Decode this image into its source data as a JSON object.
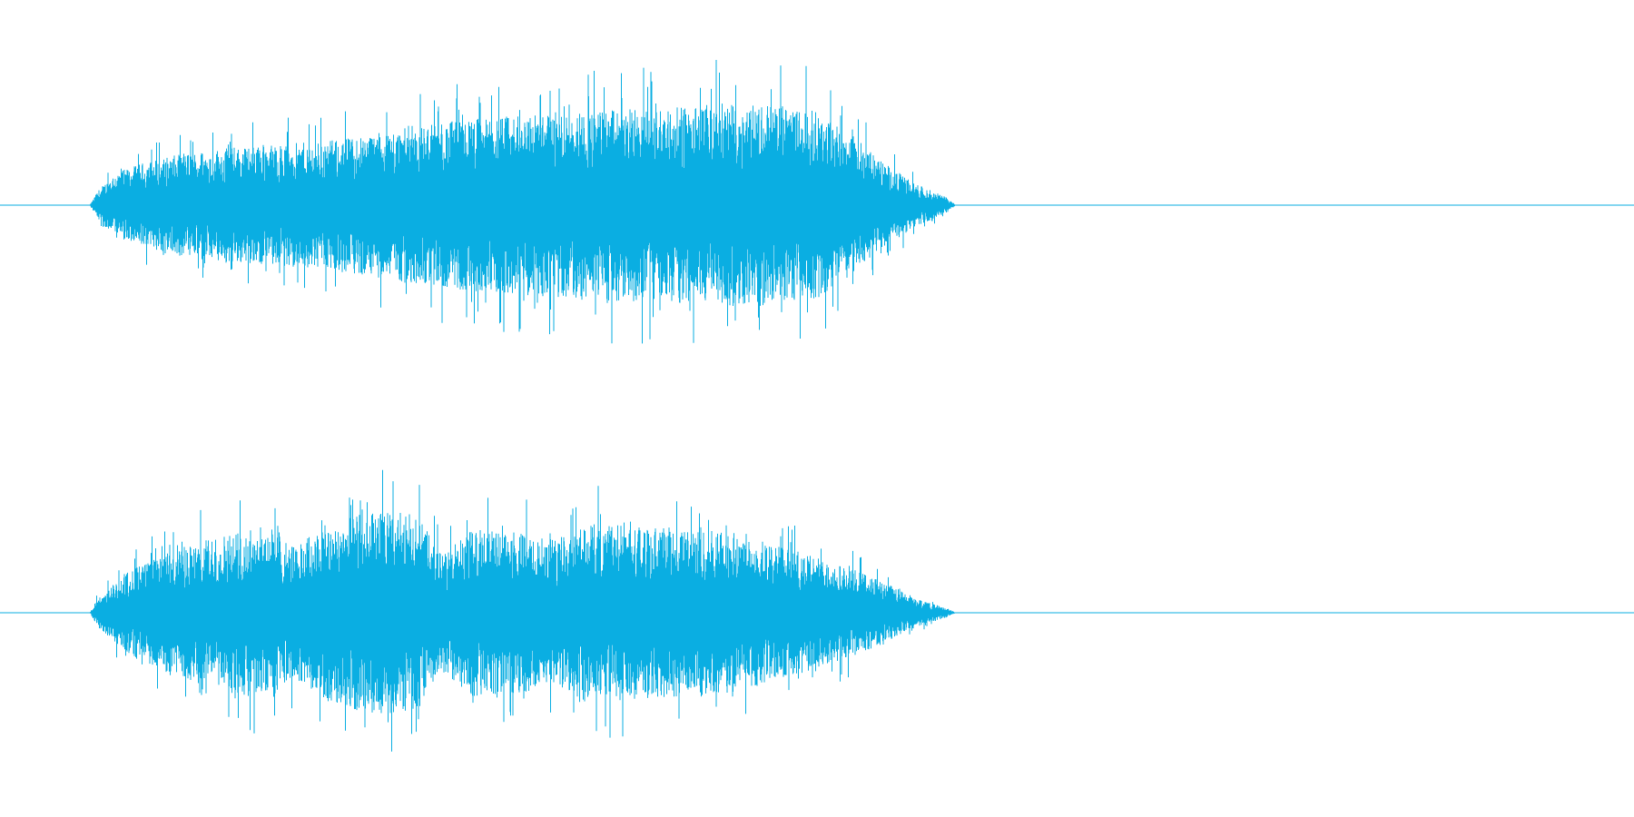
{
  "chart_data": {
    "type": "waveform",
    "title": "",
    "xlabel": "",
    "ylabel": "",
    "grid": false,
    "legend": "none",
    "color": "#0aaee2",
    "x_range": [
      0,
      1
    ],
    "y_range": [
      -1,
      1
    ],
    "channels": [
      {
        "envelope": [
          [
            0.0,
            0.0
          ],
          [
            0.055,
            0.0
          ],
          [
            0.06,
            0.1
          ],
          [
            0.07,
            0.22
          ],
          [
            0.09,
            0.3
          ],
          [
            0.11,
            0.35
          ],
          [
            0.14,
            0.4
          ],
          [
            0.17,
            0.42
          ],
          [
            0.2,
            0.44
          ],
          [
            0.23,
            0.5
          ],
          [
            0.26,
            0.55
          ],
          [
            0.29,
            0.6
          ],
          [
            0.32,
            0.62
          ],
          [
            0.35,
            0.65
          ],
          [
            0.38,
            0.66
          ],
          [
            0.41,
            0.67
          ],
          [
            0.44,
            0.7
          ],
          [
            0.47,
            0.7
          ],
          [
            0.5,
            0.65
          ],
          [
            0.52,
            0.5
          ],
          [
            0.54,
            0.3
          ],
          [
            0.56,
            0.15
          ],
          [
            0.58,
            0.05
          ],
          [
            0.585,
            0.0
          ],
          [
            1.0,
            0.0
          ]
        ]
      },
      {
        "envelope": [
          [
            0.0,
            0.0
          ],
          [
            0.055,
            0.0
          ],
          [
            0.06,
            0.1
          ],
          [
            0.08,
            0.3
          ],
          [
            0.11,
            0.45
          ],
          [
            0.14,
            0.55
          ],
          [
            0.165,
            0.6
          ],
          [
            0.18,
            0.45
          ],
          [
            0.2,
            0.62
          ],
          [
            0.23,
            0.7
          ],
          [
            0.255,
            0.68
          ],
          [
            0.27,
            0.4
          ],
          [
            0.29,
            0.58
          ],
          [
            0.32,
            0.55
          ],
          [
            0.34,
            0.5
          ],
          [
            0.36,
            0.62
          ],
          [
            0.39,
            0.6
          ],
          [
            0.42,
            0.58
          ],
          [
            0.45,
            0.55
          ],
          [
            0.48,
            0.45
          ],
          [
            0.51,
            0.35
          ],
          [
            0.54,
            0.22
          ],
          [
            0.56,
            0.1
          ],
          [
            0.58,
            0.03
          ],
          [
            0.585,
            0.0
          ],
          [
            1.0,
            0.0
          ]
        ]
      }
    ]
  }
}
